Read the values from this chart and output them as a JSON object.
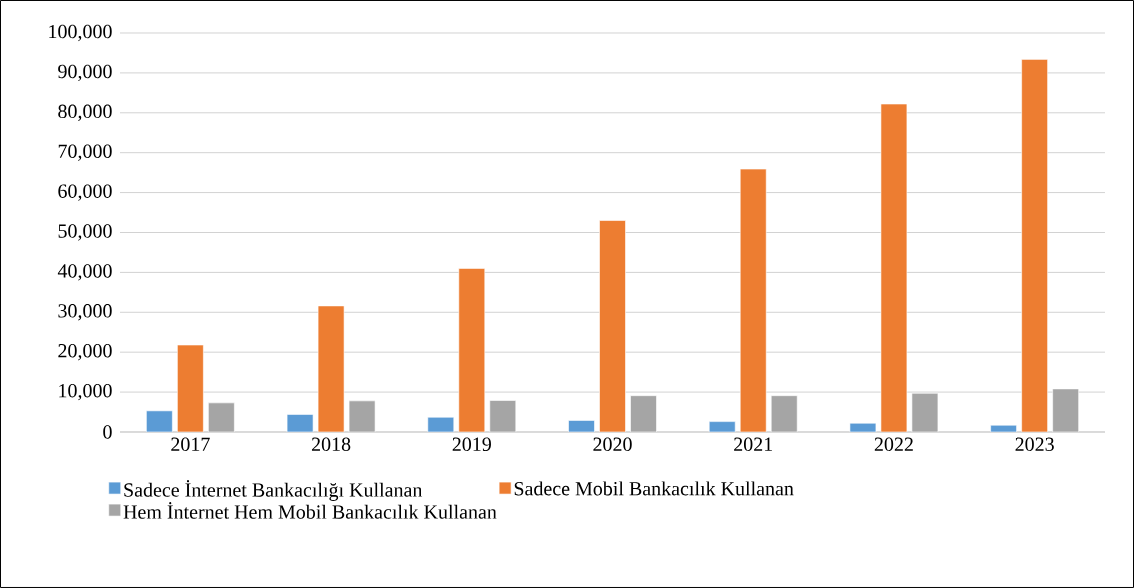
{
  "chart_data": {
    "type": "bar",
    "categories": [
      "2017",
      "2018",
      "2019",
      "2020",
      "2021",
      "2022",
      "2023"
    ],
    "series": [
      {
        "name": "Sadece İnternet Bankacılığı Kullanan",
        "color": "#5b9bd5",
        "values": [
          5300,
          4400,
          3700,
          2900,
          2600,
          2200,
          1700
        ]
      },
      {
        "name": "Sadece Mobil Bankacılık Kullanan",
        "color": "#ed7d31",
        "values": [
          21800,
          31600,
          41000,
          53000,
          65900,
          82200,
          93400
        ]
      },
      {
        "name": "Hem İnternet Hem Mobil Bankacılık Kullanan",
        "color": "#a5a5a5",
        "values": [
          7300,
          7800,
          7900,
          9100,
          9100,
          9700,
          10800
        ]
      }
    ],
    "ylim": [
      0,
      100000
    ],
    "yticks": [
      0,
      {
        "value": 10000,
        "label": "10,000"
      },
      {
        "value": 20000,
        "label": "20,000"
      },
      {
        "value": 30000,
        "label": "30,000"
      },
      {
        "value": 40000,
        "label": "40,000"
      },
      {
        "value": 50000,
        "label": "50,000"
      },
      {
        "value": 60000,
        "label": "60,000"
      },
      {
        "value": 70000,
        "label": "70,000"
      },
      {
        "value": 80000,
        "label": "80,000"
      },
      {
        "value": 90000,
        "label": "90,000"
      },
      {
        "value": 100000,
        "label": "100,000"
      }
    ],
    "grid": "y",
    "legend": "bottom"
  }
}
